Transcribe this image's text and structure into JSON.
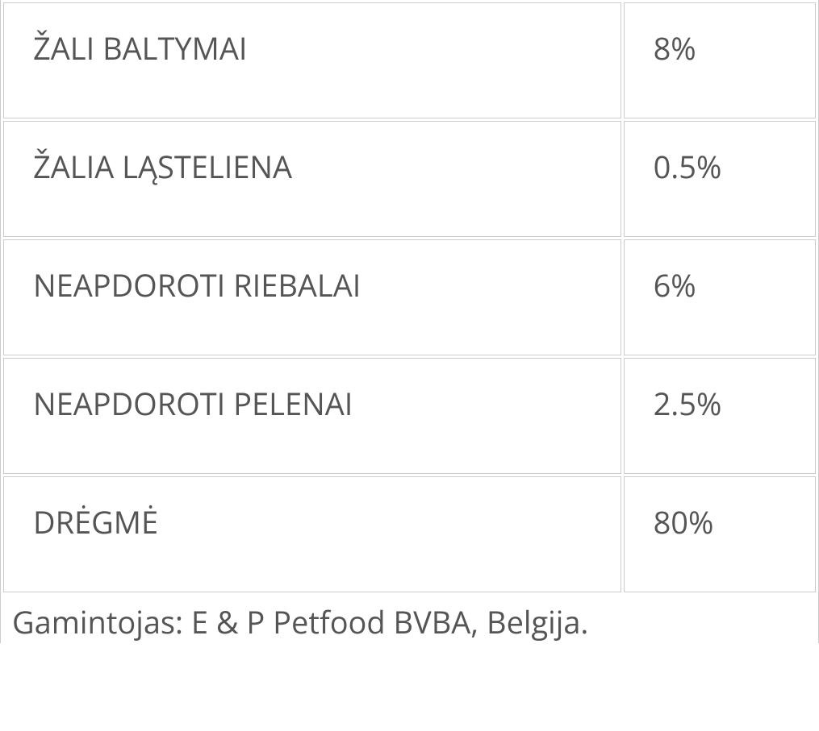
{
  "nutrition": {
    "rows": [
      {
        "label": "ŽALI BALTYMAI",
        "value": "8%"
      },
      {
        "label": "ŽALIA LĄSTELIENA",
        "value": "0.5%"
      },
      {
        "label": "NEAPDOROTI RIEBALAI",
        "value": "6%"
      },
      {
        "label": "NEAPDOROTI PELENAI",
        "value": "2.5%"
      },
      {
        "label": "DRĖGMĖ",
        "value": "80%"
      }
    ]
  },
  "manufacturer_text": "Gamintojas: E & P Petfood BVBA, Belgija."
}
